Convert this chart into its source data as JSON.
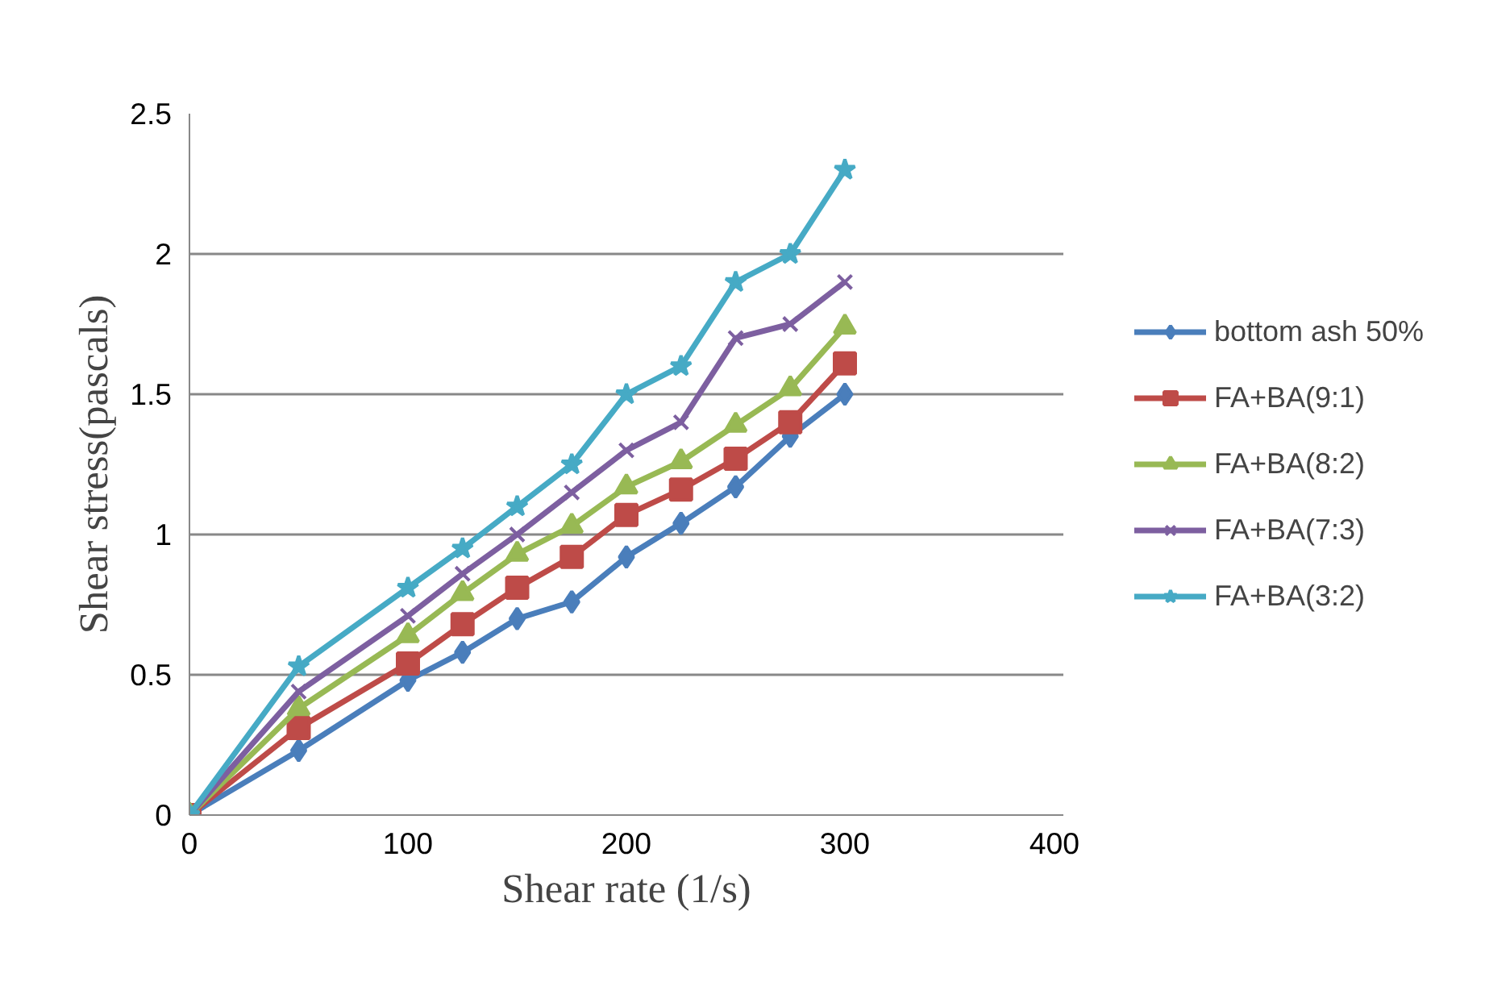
{
  "chart_data": {
    "type": "line",
    "xlabel": "Shear rate (1/s)",
    "ylabel": "Shear stress(pascals)",
    "x": [
      0,
      50,
      100,
      125,
      150,
      175,
      200,
      225,
      250,
      275,
      300
    ],
    "xlim": [
      0,
      400
    ],
    "xticks": [
      0,
      100,
      200,
      300,
      400
    ],
    "ylim": [
      0,
      2.5
    ],
    "yticks": [
      0,
      0.5,
      1,
      1.5,
      2,
      2.5
    ],
    "grid": "y",
    "legend": "right",
    "series": [
      {
        "name": "bottom ash 50%",
        "color": "#4a7ebb",
        "marker": "diamond",
        "values": [
          0,
          0.23,
          0.48,
          0.58,
          0.7,
          0.76,
          0.92,
          1.04,
          1.17,
          1.35,
          1.5
        ]
      },
      {
        "name": "FA+BA(9:1)",
        "color": "#be4b48",
        "marker": "square",
        "values": [
          0,
          0.31,
          0.54,
          0.68,
          0.81,
          0.92,
          1.07,
          1.16,
          1.27,
          1.4,
          1.61
        ]
      },
      {
        "name": "FA+BA(8:2)",
        "color": "#98b954",
        "marker": "triangle",
        "values": [
          0,
          0.38,
          0.64,
          0.79,
          0.93,
          1.03,
          1.17,
          1.26,
          1.39,
          1.52,
          1.74
        ]
      },
      {
        "name": "FA+BA(7:3)",
        "color": "#7d5fa0",
        "marker": "cross",
        "values": [
          0,
          0.44,
          0.71,
          0.86,
          1.0,
          1.15,
          1.3,
          1.4,
          1.7,
          1.75,
          1.9
        ]
      },
      {
        "name": "FA+BA(3:2)",
        "color": "#46aac5",
        "marker": "star",
        "values": [
          0,
          0.53,
          0.81,
          0.95,
          1.1,
          1.25,
          1.5,
          1.6,
          1.9,
          2.0,
          2.3
        ]
      }
    ]
  }
}
